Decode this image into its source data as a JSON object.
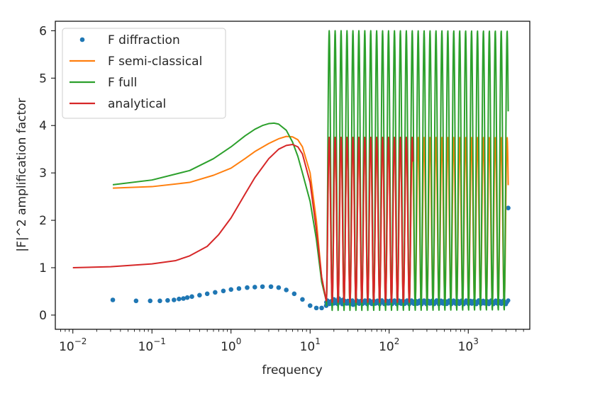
{
  "chart_data": {
    "type": "line",
    "title": "",
    "xlabel": "frequency",
    "ylabel": "|F|^2 amplification factor",
    "xscale": "log",
    "xlim": [
      0.006,
      6000
    ],
    "ylim": [
      -0.3,
      6.2
    ],
    "grid": false,
    "legend_position": "top-left",
    "x_ticks": [
      {
        "value": 0.01,
        "base": "10",
        "exp": "−2"
      },
      {
        "value": 0.1,
        "base": "10",
        "exp": "−1"
      },
      {
        "value": 1,
        "base": "10",
        "exp": "0"
      },
      {
        "value": 10,
        "base": "10",
        "exp": "1"
      },
      {
        "value": 100,
        "base": "10",
        "exp": "2"
      },
      {
        "value": 1000,
        "base": "10",
        "exp": "3"
      }
    ],
    "y_ticks": [
      {
        "value": 0,
        "label": "0"
      },
      {
        "value": 1,
        "label": "1"
      },
      {
        "value": 2,
        "label": "2"
      },
      {
        "value": 3,
        "label": "3"
      },
      {
        "value": 4,
        "label": "4"
      },
      {
        "value": 5,
        "label": "5"
      },
      {
        "value": 6,
        "label": "6"
      }
    ],
    "series": [
      {
        "name": "F diffraction",
        "style": "dots",
        "color": "#1f77b4",
        "x": [
          0.032,
          0.063,
          0.095,
          0.126,
          0.158,
          0.19,
          0.22,
          0.25,
          0.28,
          0.32,
          0.4,
          0.5,
          0.63,
          0.8,
          1.0,
          1.26,
          1.6,
          2.0,
          2.5,
          3.2,
          4.0,
          5.0,
          6.3,
          8.0,
          10.0,
          12.0,
          14.0,
          16.0,
          18.0,
          20.0,
          23.0,
          26.0,
          30.0,
          35.0,
          40.0,
          50.0,
          60.0,
          80.0,
          100.0,
          150.0,
          200.0,
          3200.0
        ],
        "y": [
          0.32,
          0.3,
          0.3,
          0.3,
          0.31,
          0.32,
          0.34,
          0.35,
          0.37,
          0.39,
          0.42,
          0.45,
          0.48,
          0.51,
          0.54,
          0.56,
          0.58,
          0.59,
          0.6,
          0.6,
          0.58,
          0.53,
          0.45,
          0.33,
          0.2,
          0.15,
          0.15,
          0.2,
          0.28,
          0.33,
          0.35,
          0.32,
          0.25,
          0.22,
          0.26,
          0.3,
          0.26,
          0.28,
          0.27,
          0.27,
          0.27,
          2.26
        ]
      },
      {
        "name": "F semi-classical",
        "style": "line",
        "color": "#ff7f0e",
        "x": [
          0.032,
          0.1,
          0.3,
          0.6,
          1.0,
          1.5,
          2.0,
          3.0,
          4.0,
          5.0,
          6.0,
          7.0,
          8.0,
          10.0,
          12.0,
          14.0,
          16.0
        ],
        "y": [
          2.68,
          2.71,
          2.8,
          2.95,
          3.1,
          3.3,
          3.45,
          3.62,
          3.72,
          3.77,
          3.76,
          3.7,
          3.55,
          3.0,
          2.0,
          0.8,
          0.3
        ],
        "oscillation": {
          "from": 16.0,
          "to": 3200.0,
          "min": 0.25,
          "max": 3.75,
          "period_decades": 0.075
        }
      },
      {
        "name": "F full",
        "style": "line",
        "color": "#2ca02c",
        "x": [
          0.032,
          0.1,
          0.3,
          0.6,
          1.0,
          1.5,
          2.0,
          2.5,
          3.0,
          3.5,
          4.0,
          5.0,
          6.0,
          7.0,
          8.0,
          10.0,
          12.0,
          14.0,
          16.0
        ],
        "y": [
          2.75,
          2.85,
          3.05,
          3.3,
          3.55,
          3.78,
          3.92,
          4.0,
          4.04,
          4.05,
          4.03,
          3.9,
          3.65,
          3.35,
          3.0,
          2.4,
          1.6,
          0.7,
          0.3
        ],
        "oscillation": {
          "from": 16.0,
          "to": 3200.0,
          "min": 0.1,
          "max": 6.0,
          "period_decades": 0.075
        }
      },
      {
        "name": "analytical",
        "style": "line",
        "color": "#d62728",
        "x": [
          0.01,
          0.03,
          0.1,
          0.2,
          0.3,
          0.5,
          0.7,
          1.0,
          1.5,
          2.0,
          3.0,
          4.0,
          5.0,
          6.0,
          7.0,
          8.0,
          10.0,
          12.0,
          14.0,
          16.0
        ],
        "y": [
          1.0,
          1.02,
          1.08,
          1.15,
          1.25,
          1.45,
          1.7,
          2.05,
          2.55,
          2.9,
          3.3,
          3.5,
          3.58,
          3.6,
          3.55,
          3.4,
          2.8,
          1.8,
          0.8,
          0.3
        ],
        "oscillation": {
          "from": 16.0,
          "to": 200.0,
          "min": 0.27,
          "max": 3.75,
          "period_decades": 0.075
        }
      }
    ]
  }
}
